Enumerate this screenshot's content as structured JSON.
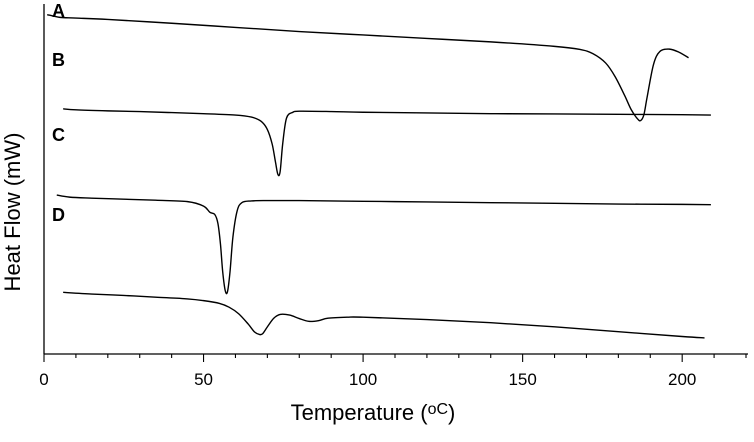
{
  "chart_data": {
    "type": "line",
    "xlabel": "Temperature (",
    "xlabel_unit": "oC",
    "xlabel_close": ")",
    "ylabel": "Heat Flow (mW)",
    "xlim": [
      0,
      220
    ],
    "ylim": [
      0,
      100
    ],
    "y_ticks_shown": false,
    "grid": false,
    "legend": "none",
    "x_ticks": [
      0,
      50,
      100,
      150,
      200
    ],
    "curve_labels": [
      "A",
      "B",
      "C",
      "D"
    ],
    "series": [
      {
        "name": "A",
        "x": [
          1,
          5,
          10,
          20,
          40,
          60,
          80,
          100,
          120,
          140,
          160,
          168,
          172,
          176,
          179,
          182,
          184,
          186,
          187,
          188,
          189,
          191,
          193,
          196,
          199,
          202
        ],
        "y": [
          97.5,
          96.7,
          96.5,
          96.1,
          95.0,
          93.8,
          92.6,
          91.6,
          90.6,
          89.6,
          88.3,
          87.4,
          86.2,
          83.5,
          79.5,
          74.0,
          70.0,
          67.3,
          66.8,
          68.5,
          73.5,
          83.0,
          86.8,
          87.5,
          86.6,
          85.0
        ]
      },
      {
        "name": "B",
        "x": [
          6,
          10,
          20,
          30,
          40,
          50,
          60,
          65,
          68,
          70,
          71.5,
          72.5,
          73.3,
          74,
          74.8,
          76,
          78,
          80,
          90,
          100,
          120,
          140,
          160,
          180,
          200,
          209
        ],
        "y": [
          70.2,
          69.9,
          69.6,
          69.4,
          69.1,
          68.8,
          68.4,
          67.8,
          66.6,
          64.2,
          60.0,
          55.0,
          51.2,
          52.0,
          60.0,
          67.5,
          69.2,
          69.5,
          69.4,
          69.2,
          69.0,
          68.8,
          68.7,
          68.6,
          68.5,
          68.4
        ]
      },
      {
        "name": "C",
        "x": [
          4,
          8,
          15,
          25,
          35,
          45,
          50,
          52,
          53.5,
          54.5,
          55.3,
          56,
          56.8,
          57.5,
          58.3,
          59.2,
          60.5,
          62,
          65,
          70,
          80,
          100,
          120,
          140,
          160,
          180,
          200,
          209
        ],
        "y": [
          45.2,
          44.6,
          44.3,
          44.0,
          43.7,
          43.3,
          42.0,
          40.2,
          39.6,
          37.0,
          31.0,
          23.0,
          17.5,
          17.2,
          23.0,
          33.0,
          40.5,
          43.0,
          43.5,
          43.6,
          43.6,
          43.4,
          43.2,
          43.0,
          42.8,
          42.6,
          42.5,
          42.4
        ]
      },
      {
        "name": "D",
        "x": [
          6,
          15,
          25,
          35,
          45,
          50,
          55,
          58,
          61,
          64,
          66,
          67.5,
          68.5,
          70,
          72,
          74,
          77,
          80,
          83,
          86,
          89,
          95,
          100,
          120,
          140,
          160,
          180,
          200,
          207
        ],
        "y": [
          17.0,
          16.5,
          16.1,
          15.6,
          15.1,
          14.6,
          13.8,
          12.7,
          10.8,
          7.8,
          5.5,
          4.8,
          5.0,
          7.0,
          9.5,
          10.6,
          10.4,
          9.4,
          8.6,
          8.8,
          9.5,
          9.8,
          9.8,
          9.1,
          8.2,
          7.0,
          5.6,
          4.2,
          3.8
        ]
      }
    ]
  }
}
